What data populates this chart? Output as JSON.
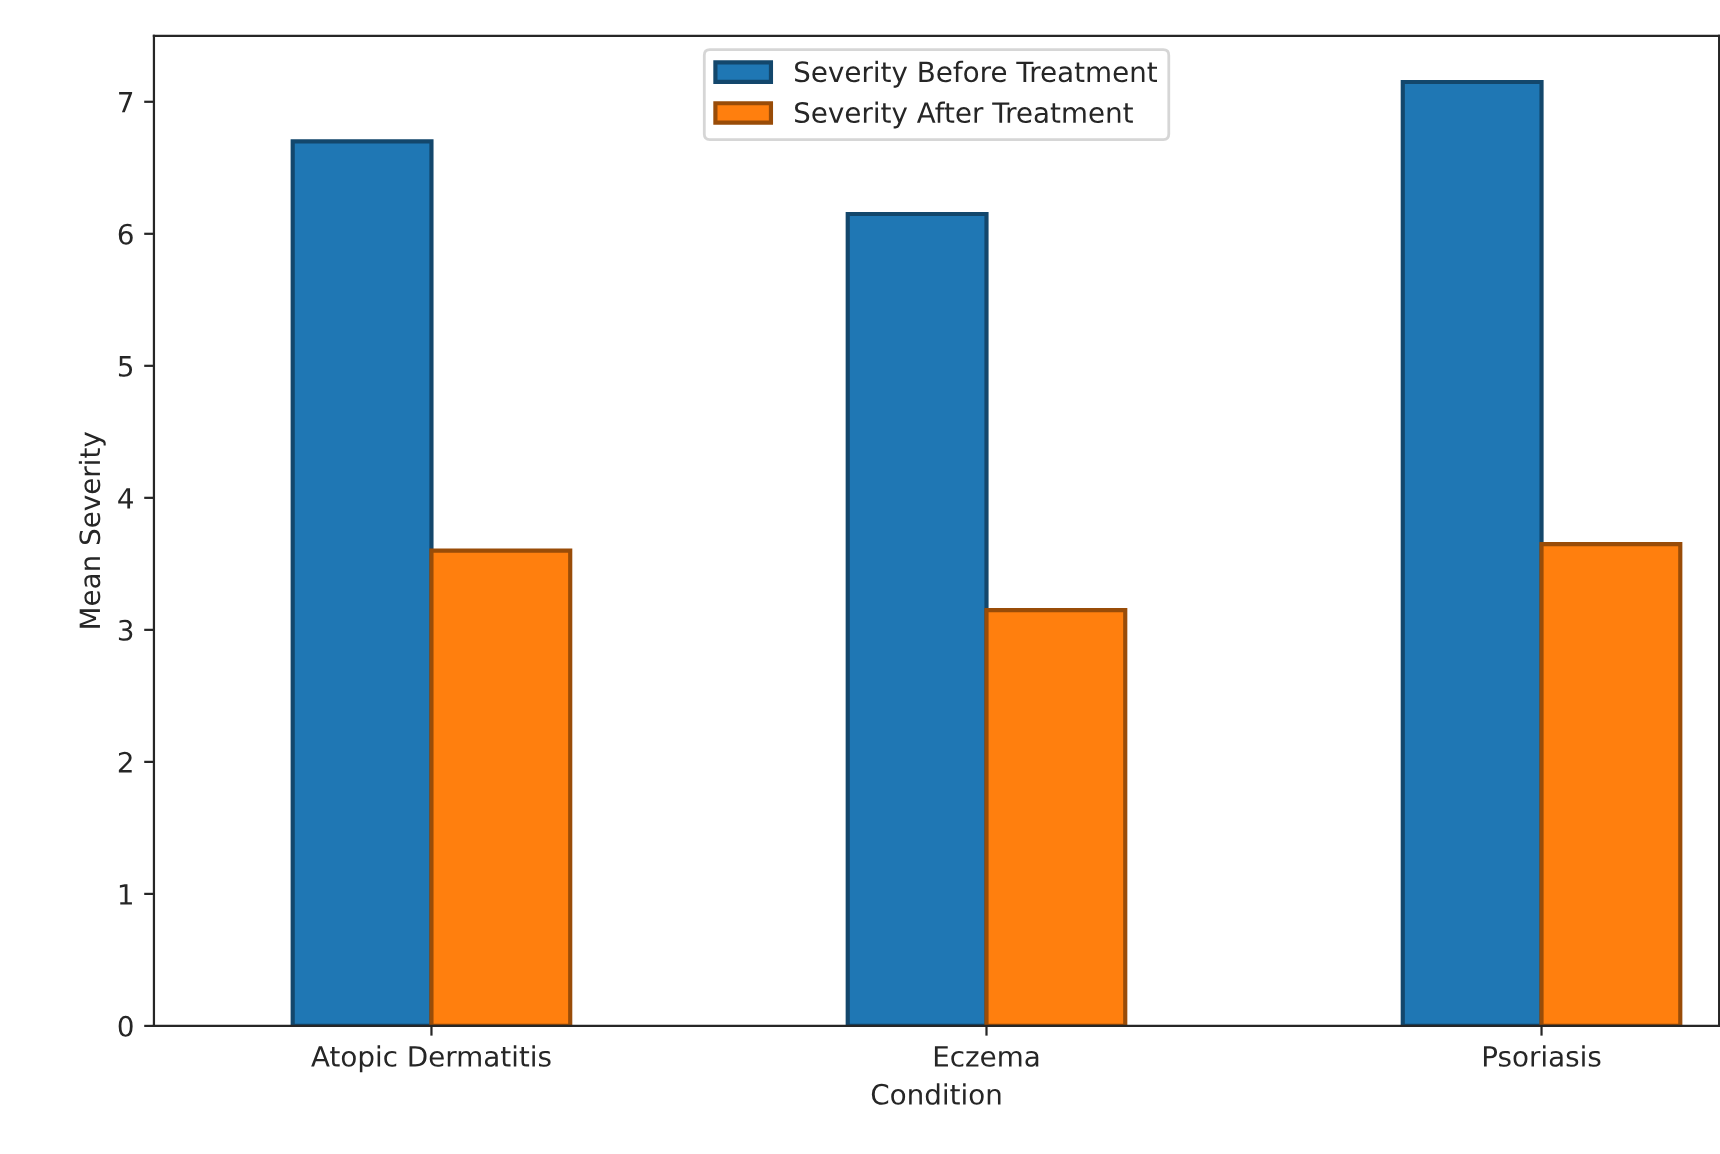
{
  "chart_data": {
    "type": "bar",
    "xlabel": "Condition",
    "ylabel": "Mean Severity",
    "categories": [
      "Atopic Dermatitis",
      "Eczema",
      "Psoriasis"
    ],
    "series": [
      {
        "name": "Severity Before Treatment",
        "color": "#1f77b4",
        "values": [
          6.7,
          6.15,
          7.15
        ]
      },
      {
        "name": "Severity After Treatment",
        "color": "#ff7f0e",
        "values": [
          3.6,
          3.15,
          3.65
        ]
      }
    ],
    "ylim": [
      0,
      7.5
    ],
    "yticks": [
      0,
      1,
      2,
      3,
      4,
      5,
      6,
      7
    ],
    "grid": false,
    "legend": "top"
  }
}
